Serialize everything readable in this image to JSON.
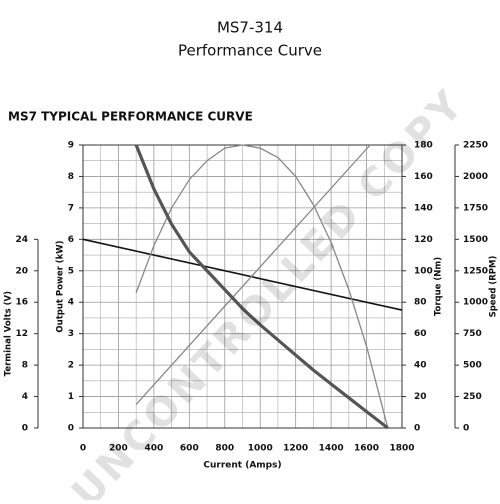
{
  "header": {
    "title": "MS7-314",
    "subtitle": "Performance Curve"
  },
  "watermark": "UNCONTROLLED COPY",
  "chart_data": {
    "type": "line",
    "title": "MS7 TYPICAL PERFORMANCE CURVE",
    "x_label": "Current (Amps)",
    "xlim": [
      0,
      1800
    ],
    "xticks": [
      0,
      200,
      400,
      600,
      800,
      1000,
      1200,
      1400,
      1600,
      1800
    ],
    "grid": true,
    "axes": [
      {
        "label": "Terminal Volts (V)",
        "lim": [
          0,
          36
        ],
        "ticks": [
          0,
          4,
          8,
          12,
          16,
          20,
          24
        ]
      },
      {
        "label": "Output Power (kW)",
        "lim": [
          0,
          9
        ],
        "ticks": [
          0,
          1,
          2,
          3,
          4,
          5,
          6,
          7,
          8,
          9
        ]
      },
      {
        "label": "Torque (Nm)",
        "lim": [
          0,
          180
        ],
        "ticks": [
          0,
          20,
          40,
          60,
          80,
          100,
          120,
          140,
          160,
          180
        ]
      },
      {
        "label": "Speed (RPM)",
        "lim": [
          0,
          2250
        ],
        "ticks": [
          0,
          250,
          500,
          750,
          1000,
          1250,
          1500,
          1750,
          2000,
          2250
        ]
      }
    ],
    "series": [
      {
        "axis": 0,
        "color": "#111111",
        "width": 1.6,
        "x": [
          0,
          1800
        ],
        "values": [
          24,
          15
        ]
      },
      {
        "axis": 1,
        "color": "#888888",
        "width": 1.3,
        "x": [
          300,
          400,
          500,
          600,
          700,
          800,
          900,
          1000,
          1100,
          1200,
          1300,
          1400,
          1500,
          1600,
          1720
        ],
        "values": [
          4.3,
          5.8,
          7.0,
          7.9,
          8.5,
          8.9,
          9.0,
          8.9,
          8.6,
          8.0,
          7.1,
          5.9,
          4.4,
          2.6,
          0
        ]
      },
      {
        "axis": 2,
        "color": "#888888",
        "width": 1.3,
        "x": [
          300,
          1620
        ],
        "values": [
          15,
          180
        ]
      },
      {
        "axis": 3,
        "color": "#555555",
        "width": 3.2,
        "x": [
          300,
          400,
          500,
          600,
          700,
          800,
          900,
          1000,
          1100,
          1200,
          1300,
          1400,
          1500,
          1600,
          1720
        ],
        "values": [
          2250,
          1900,
          1620,
          1400,
          1250,
          1100,
          950,
          820,
          700,
          580,
          460,
          350,
          240,
          130,
          0
        ]
      }
    ]
  }
}
